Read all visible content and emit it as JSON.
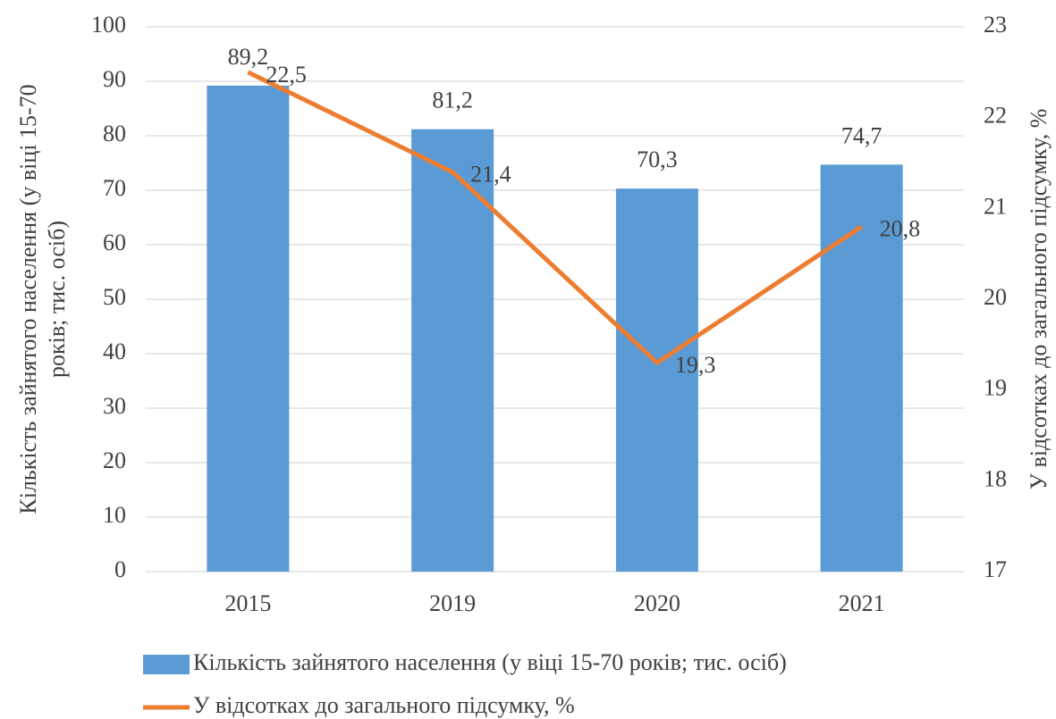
{
  "chart_data": {
    "type": "bar",
    "categories": [
      "2015",
      "2019",
      "2020",
      "2021"
    ],
    "ylabel": [
      "Кількість зайнятого населення (у віці 15-70",
      "років; тис. осіб)"
    ],
    "y2label": "У відсотках до загального підсумку, %",
    "series": [
      {
        "name": "Кількість зайнятого населення (у віці 15-70 років; тис. осіб)",
        "type": "bar",
        "color": "#5b9bd5",
        "values": [
          89.2,
          81.2,
          70.3,
          74.7
        ],
        "value_labels": [
          "89,2",
          "81,2",
          "70,3",
          "74,7"
        ]
      },
      {
        "name": "У відсотках до загального підсумку, %",
        "type": "line",
        "axis": "y2",
        "color": "#ed7d31",
        "values": [
          22.5,
          21.4,
          19.3,
          20.8
        ],
        "value_labels": [
          "22,5",
          "21,4",
          "19,3",
          "20,8"
        ]
      }
    ],
    "ylim": [
      0,
      100
    ],
    "yticks": [
      0,
      10,
      20,
      30,
      40,
      50,
      60,
      70,
      80,
      90,
      100
    ],
    "y2lim": [
      17,
      23
    ],
    "y2ticks": [
      17,
      18,
      19,
      20,
      21,
      22,
      23
    ],
    "grid": true,
    "legend": "bottom"
  }
}
